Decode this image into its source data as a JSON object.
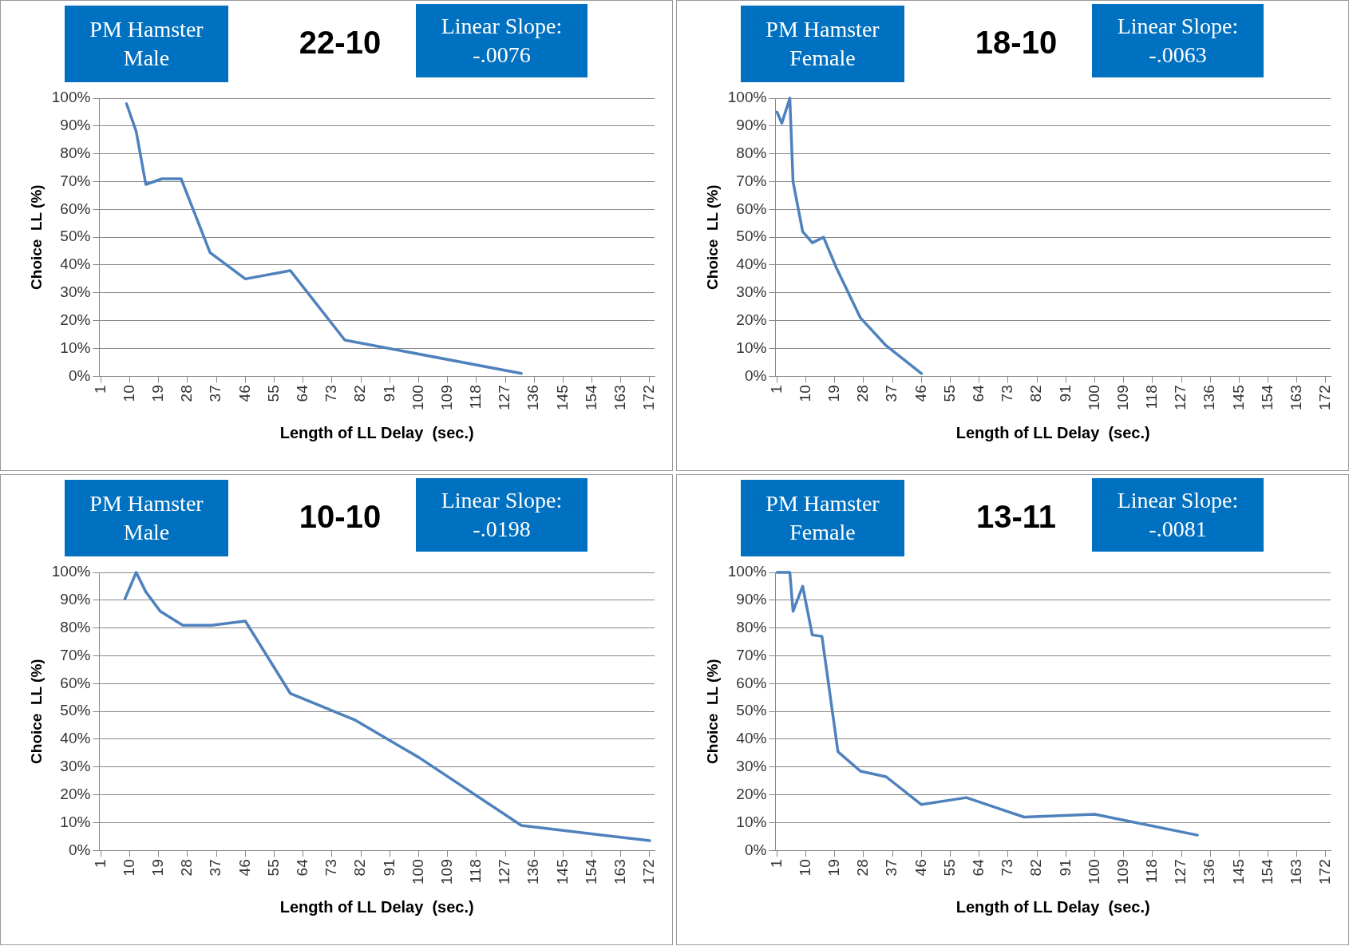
{
  "chart_data": [
    {
      "type": "line",
      "title": "22-10",
      "annotations": [
        "PM Hamster Male",
        "Linear Slope: -.0076"
      ],
      "xlabel": "Length of LL Delay  (sec.)",
      "ylabel": "Choice  LL (%)",
      "grid": "y",
      "legend": false,
      "marker": "none",
      "line_style": "solid",
      "x": [
        9,
        12,
        15,
        20,
        26,
        35,
        46,
        60,
        77,
        132
      ],
      "series": [
        {
          "color": "#4f81bd",
          "values": [
            98,
            88,
            69,
            71,
            71,
            44.5,
            35,
            38,
            13,
            1
          ]
        }
      ],
      "xlim": [
        0.5,
        173.5
      ],
      "xticks": [
        1,
        10,
        19,
        28,
        37,
        46,
        55,
        64,
        73,
        82,
        91,
        100,
        109,
        118,
        127,
        136,
        145,
        154,
        163,
        172
      ],
      "ylim": [
        0,
        100
      ],
      "yticks": [
        {
          "value": 0,
          "label": "0%"
        },
        {
          "value": 10,
          "label": "10%"
        },
        {
          "value": 20,
          "label": "20%"
        },
        {
          "value": 30,
          "label": "30%"
        },
        {
          "value": 40,
          "label": "40%"
        },
        {
          "value": 50,
          "label": "50%"
        },
        {
          "value": 60,
          "label": "60%"
        },
        {
          "value": 70,
          "label": "70%"
        },
        {
          "value": 80,
          "label": "80%"
        },
        {
          "value": 90,
          "label": "90%"
        },
        {
          "value": 100,
          "label": "100%"
        }
      ]
    },
    {
      "type": "line",
      "title": "18-10",
      "annotations": [
        "PM Hamster Female",
        "Linear Slope: -.0063"
      ],
      "xlabel": "Length of LL Delay  (sec.)",
      "ylabel": "Choice  LL (%)",
      "grid": "y",
      "legend": false,
      "marker": "none",
      "line_style": "solid",
      "x": [
        1,
        2.5,
        5,
        6,
        9,
        12,
        15.5,
        19.5,
        27,
        35,
        46
      ],
      "series": [
        {
          "color": "#4f81bd",
          "values": [
            95,
            91,
            100,
            70,
            52,
            48,
            50,
            39,
            21,
            11,
            1
          ]
        }
      ],
      "xlim": [
        0.5,
        173.5
      ],
      "xticks": [
        1,
        10,
        19,
        28,
        37,
        46,
        55,
        64,
        73,
        82,
        91,
        100,
        109,
        118,
        127,
        136,
        145,
        154,
        163,
        172
      ],
      "ylim": [
        0,
        100
      ],
      "yticks": [
        {
          "value": 0,
          "label": "0%"
        },
        {
          "value": 10,
          "label": "10%"
        },
        {
          "value": 20,
          "label": "20%"
        },
        {
          "value": 30,
          "label": "30%"
        },
        {
          "value": 40,
          "label": "40%"
        },
        {
          "value": 50,
          "label": "50%"
        },
        {
          "value": 60,
          "label": "60%"
        },
        {
          "value": 70,
          "label": "70%"
        },
        {
          "value": 80,
          "label": "80%"
        },
        {
          "value": 90,
          "label": "90%"
        },
        {
          "value": 100,
          "label": "100%"
        }
      ]
    },
    {
      "type": "line",
      "title": "10-10",
      "annotations": [
        "PM Hamster Male",
        "Linear Slope: -.0198"
      ],
      "xlabel": "Length of LL Delay  (sec.)",
      "ylabel": "Choice  LL (%)",
      "grid": "y",
      "legend": false,
      "marker": "none",
      "line_style": "solid",
      "x": [
        8.5,
        12,
        15,
        19.5,
        26.5,
        35.5,
        46,
        60,
        80,
        100,
        132,
        172
      ],
      "series": [
        {
          "color": "#4f81bd",
          "values": [
            90.5,
            100,
            93,
            86,
            81,
            81,
            82.5,
            56.5,
            47,
            33.5,
            9,
            3.5
          ]
        }
      ],
      "xlim": [
        0.5,
        173.5
      ],
      "xticks": [
        1,
        10,
        19,
        28,
        37,
        46,
        55,
        64,
        73,
        82,
        91,
        100,
        109,
        118,
        127,
        136,
        145,
        154,
        163,
        172
      ],
      "ylim": [
        0,
        100
      ],
      "yticks": [
        {
          "value": 0,
          "label": "0%"
        },
        {
          "value": 10,
          "label": "10%"
        },
        {
          "value": 20,
          "label": "20%"
        },
        {
          "value": 30,
          "label": "30%"
        },
        {
          "value": 40,
          "label": "40%"
        },
        {
          "value": 50,
          "label": "50%"
        },
        {
          "value": 60,
          "label": "60%"
        },
        {
          "value": 70,
          "label": "70%"
        },
        {
          "value": 80,
          "label": "80%"
        },
        {
          "value": 90,
          "label": "90%"
        },
        {
          "value": 100,
          "label": "100%"
        }
      ]
    },
    {
      "type": "line",
      "title": "13-11",
      "annotations": [
        "PM Hamster Female",
        "Linear Slope: -.0081"
      ],
      "xlabel": "Length of LL Delay  (sec.)",
      "ylabel": "Choice  LL (%)",
      "grid": "y",
      "legend": false,
      "marker": "none",
      "line_style": "solid",
      "x": [
        1,
        5,
        6,
        9,
        12,
        15,
        20,
        27,
        35,
        46,
        60,
        78,
        100,
        132
      ],
      "series": [
        {
          "color": "#4f81bd",
          "values": [
            100,
            100,
            86,
            95,
            77.5,
            77,
            35.5,
            28.5,
            26.5,
            16.5,
            19,
            12,
            13,
            5.5
          ]
        }
      ],
      "xlim": [
        0.5,
        173.5
      ],
      "xticks": [
        1,
        10,
        19,
        28,
        37,
        46,
        55,
        64,
        73,
        82,
        91,
        100,
        109,
        118,
        127,
        136,
        145,
        154,
        163,
        172
      ],
      "ylim": [
        0,
        100
      ],
      "yticks": [
        {
          "value": 0,
          "label": "0%"
        },
        {
          "value": 10,
          "label": "10%"
        },
        {
          "value": 20,
          "label": "20%"
        },
        {
          "value": 30,
          "label": "30%"
        },
        {
          "value": 40,
          "label": "40%"
        },
        {
          "value": 50,
          "label": "50%"
        },
        {
          "value": 60,
          "label": "60%"
        },
        {
          "value": 70,
          "label": "70%"
        },
        {
          "value": 80,
          "label": "80%"
        },
        {
          "value": 90,
          "label": "90%"
        },
        {
          "value": 100,
          "label": "100%"
        }
      ]
    }
  ]
}
